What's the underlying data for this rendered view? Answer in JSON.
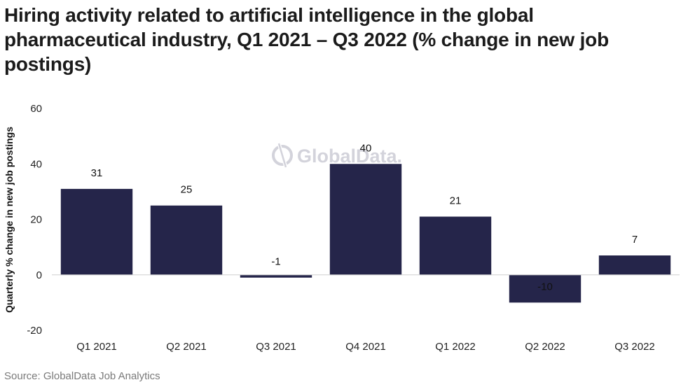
{
  "watermark": "GlobalData.",
  "source": "Source: GlobalData Job Analytics",
  "colors": {
    "bar": "#25254a",
    "axis": "#cfcfcf",
    "watermark": "#d3d3db"
  },
  "chart_data": {
    "type": "bar",
    "title": "Hiring activity related to artificial intelligence in the global pharmaceutical industry, Q1 2021 – Q3 2022 (% change in new job postings)",
    "xlabel": "",
    "ylabel": "Quarterly % change in new job postings",
    "categories": [
      "Q1 2021",
      "Q2 2021",
      "Q3 2021",
      "Q4 2021",
      "Q1 2022",
      "Q2 2022",
      "Q3 2022"
    ],
    "values": [
      31,
      25,
      -1,
      40,
      21,
      -10,
      7
    ],
    "ylim": [
      -20,
      60
    ],
    "yticks": [
      -20,
      0,
      20,
      40,
      60
    ],
    "grid": false,
    "legend": "none"
  }
}
